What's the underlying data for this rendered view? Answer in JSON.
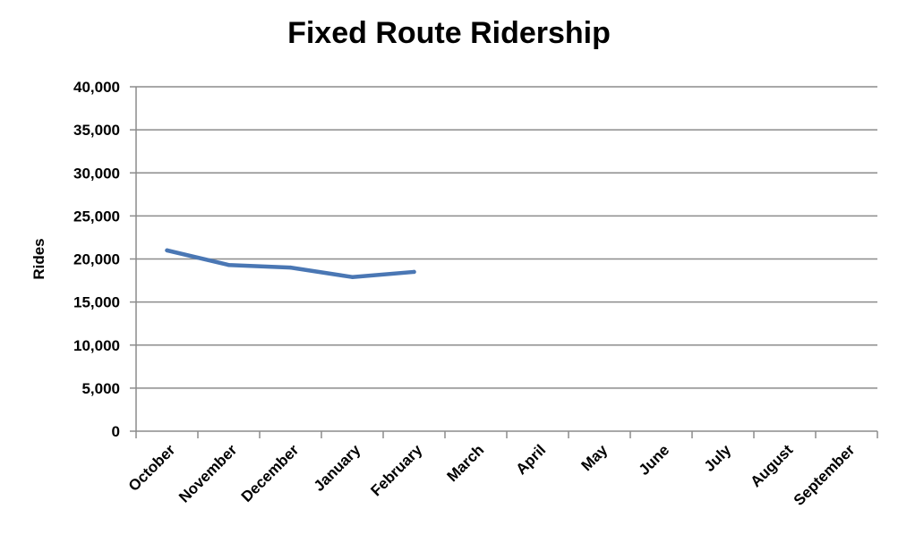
{
  "chart_data": {
    "type": "line",
    "title": "Fixed Route Ridership",
    "xlabel": "",
    "ylabel": "Rides",
    "categories": [
      "October",
      "November",
      "December",
      "January",
      "February",
      "March",
      "April",
      "May",
      "June",
      "July",
      "August",
      "September"
    ],
    "series": [
      {
        "values": [
          21000,
          19300,
          19000,
          17900,
          18500,
          null,
          null,
          null,
          null,
          null,
          null,
          null
        ],
        "color": "#4a77b4"
      }
    ],
    "ylim": [
      0,
      40000
    ],
    "yticks": [
      0,
      5000,
      10000,
      15000,
      20000,
      25000,
      30000,
      35000,
      40000
    ],
    "ytick_labels": [
      "0",
      "5,000",
      "10,000",
      "15,000",
      "20,000",
      "25,000",
      "30,000",
      "35,000",
      "40,000"
    ],
    "grid": true,
    "gridline_color": "#8c8c8c",
    "legend": "none"
  }
}
